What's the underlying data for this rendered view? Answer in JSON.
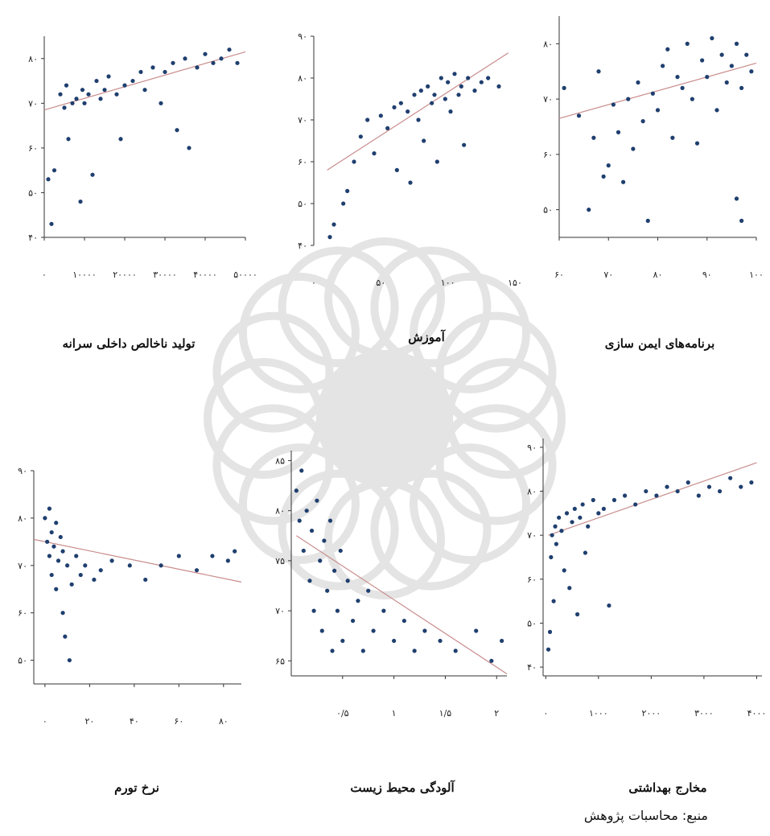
{
  "source_note": "منبع: محاسبات پژوهش",
  "colors": {
    "points": "#1f3f6e",
    "fit_line": "#c98b8b",
    "axis": "#333333",
    "watermark": "#cfcfcf"
  },
  "chart_data": [
    {
      "id": "gdp",
      "type": "scatter",
      "title": "تولید ناخالص داخلی سرانه",
      "xlim": [
        0,
        50000
      ],
      "ylim": [
        40,
        85
      ],
      "x_ticks": [
        0,
        10000,
        20000,
        30000,
        40000,
        50000
      ],
      "x_tick_labels": [
        "۰",
        "۱۰۰۰۰",
        "۲۰۰۰۰",
        "۳۰۰۰۰",
        "۴۰۰۰۰",
        "۵۰۰۰۰"
      ],
      "y_ticks": [
        40,
        50,
        60,
        70,
        80
      ],
      "y_tick_labels": [
        "۴۰",
        "۵۰",
        "۶۰",
        "۷۰",
        "۸۰"
      ],
      "fit": {
        "x": [
          0,
          50000
        ],
        "y": [
          68.5,
          81.5
        ]
      },
      "points": [
        [
          1000,
          53
        ],
        [
          1800,
          43
        ],
        [
          2500,
          55
        ],
        [
          4000,
          72
        ],
        [
          5000,
          69
        ],
        [
          5500,
          74
        ],
        [
          6000,
          62
        ],
        [
          7000,
          70
        ],
        [
          8000,
          71
        ],
        [
          9000,
          48
        ],
        [
          9500,
          73
        ],
        [
          10000,
          70
        ],
        [
          11000,
          72
        ],
        [
          12000,
          54
        ],
        [
          13000,
          75
        ],
        [
          14000,
          71
        ],
        [
          15000,
          73
        ],
        [
          16000,
          76
        ],
        [
          18000,
          72
        ],
        [
          19000,
          62
        ],
        [
          20000,
          74
        ],
        [
          22000,
          75
        ],
        [
          24000,
          77
        ],
        [
          25000,
          73
        ],
        [
          27000,
          78
        ],
        [
          29000,
          70
        ],
        [
          30000,
          77
        ],
        [
          32000,
          79
        ],
        [
          33000,
          64
        ],
        [
          35000,
          80
        ],
        [
          36000,
          60
        ],
        [
          38000,
          78
        ],
        [
          40000,
          81
        ],
        [
          42000,
          79
        ],
        [
          44000,
          80
        ],
        [
          46000,
          82
        ],
        [
          48000,
          79
        ]
      ]
    },
    {
      "id": "education",
      "type": "scatter",
      "title": "آموزش",
      "xlim": [
        0,
        150
      ],
      "ylim": [
        40,
        90
      ],
      "x_ticks": [
        0,
        50,
        100,
        150
      ],
      "x_tick_labels": [
        "۰",
        "۵۰",
        "۱۰۰",
        "۱۵۰"
      ],
      "y_ticks": [
        40,
        50,
        60,
        70,
        80,
        90
      ],
      "y_tick_labels": [
        "۴۰",
        "۵۰",
        "۶۰",
        "۷۰",
        "۸۰",
        "۹۰"
      ],
      "fit": {
        "x": [
          10,
          145
        ],
        "y": [
          58,
          86
        ]
      },
      "points": [
        [
          12,
          42
        ],
        [
          15,
          45
        ],
        [
          22,
          50
        ],
        [
          25,
          53
        ],
        [
          30,
          60
        ],
        [
          35,
          66
        ],
        [
          40,
          70
        ],
        [
          45,
          62
        ],
        [
          50,
          71
        ],
        [
          55,
          68
        ],
        [
          60,
          73
        ],
        [
          62,
          58
        ],
        [
          65,
          74
        ],
        [
          70,
          72
        ],
        [
          72,
          55
        ],
        [
          75,
          76
        ],
        [
          78,
          70
        ],
        [
          80,
          77
        ],
        [
          82,
          65
        ],
        [
          85,
          78
        ],
        [
          88,
          74
        ],
        [
          90,
          76
        ],
        [
          92,
          60
        ],
        [
          95,
          80
        ],
        [
          98,
          75
        ],
        [
          100,
          79
        ],
        [
          102,
          72
        ],
        [
          105,
          81
        ],
        [
          108,
          76
        ],
        [
          110,
          78
        ],
        [
          112,
          64
        ],
        [
          115,
          80
        ],
        [
          120,
          77
        ],
        [
          125,
          79
        ],
        [
          130,
          80
        ],
        [
          138,
          78
        ]
      ]
    },
    {
      "id": "immunization",
      "type": "scatter",
      "title": "برنامه‌های ایمن سازی",
      "xlim": [
        60,
        100
      ],
      "ylim": [
        45,
        85
      ],
      "x_ticks": [
        60,
        70,
        80,
        90,
        100
      ],
      "x_tick_labels": [
        "۶۰",
        "۷۰",
        "۸۰",
        "۹۰",
        "۱۰۰"
      ],
      "y_ticks": [
        50,
        60,
        70,
        80
      ],
      "y_tick_labels": [
        "۵۰",
        "۶۰",
        "۷۰",
        "۸۰"
      ],
      "fit": {
        "x": [
          60,
          100
        ],
        "y": [
          66.5,
          76.5
        ]
      },
      "points": [
        [
          61,
          72
        ],
        [
          64,
          67
        ],
        [
          66,
          50
        ],
        [
          67,
          63
        ],
        [
          68,
          75
        ],
        [
          69,
          56
        ],
        [
          70,
          58
        ],
        [
          71,
          69
        ],
        [
          72,
          64
        ],
        [
          73,
          55
        ],
        [
          74,
          70
        ],
        [
          75,
          61
        ],
        [
          76,
          73
        ],
        [
          77,
          66
        ],
        [
          78,
          48
        ],
        [
          79,
          71
        ],
        [
          80,
          68
        ],
        [
          81,
          76
        ],
        [
          82,
          79
        ],
        [
          83,
          63
        ],
        [
          84,
          74
        ],
        [
          85,
          72
        ],
        [
          86,
          80
        ],
        [
          87,
          70
        ],
        [
          88,
          62
        ],
        [
          89,
          77
        ],
        [
          90,
          74
        ],
        [
          91,
          81
        ],
        [
          92,
          68
        ],
        [
          93,
          78
        ],
        [
          94,
          73
        ],
        [
          95,
          76
        ],
        [
          96,
          80
        ],
        [
          97,
          72
        ],
        [
          98,
          78
        ],
        [
          99,
          75
        ],
        [
          97,
          48
        ],
        [
          96,
          52
        ]
      ]
    },
    {
      "id": "inflation",
      "type": "scatter",
      "title": "نرخ تورم",
      "xlim": [
        -5,
        88
      ],
      "ylim": [
        45,
        90
      ],
      "x_ticks": [
        0,
        20,
        40,
        60,
        80
      ],
      "x_tick_labels": [
        "۰",
        "۲۰",
        "۴۰",
        "۶۰",
        "۸۰"
      ],
      "y_ticks": [
        50,
        60,
        70,
        80,
        90
      ],
      "y_tick_labels": [
        "۵۰",
        "۶۰",
        "۷۰",
        "۸۰",
        "۹۰"
      ],
      "fit": {
        "x": [
          -5,
          88
        ],
        "y": [
          75.5,
          66.5
        ]
      },
      "points": [
        [
          0,
          80
        ],
        [
          1,
          75
        ],
        [
          2,
          72
        ],
        [
          2,
          82
        ],
        [
          3,
          77
        ],
        [
          3,
          68
        ],
        [
          4,
          74
        ],
        [
          5,
          79
        ],
        [
          5,
          65
        ],
        [
          6,
          71
        ],
        [
          7,
          76
        ],
        [
          8,
          60
        ],
        [
          8,
          73
        ],
        [
          9,
          55
        ],
        [
          10,
          70
        ],
        [
          11,
          50
        ],
        [
          12,
          66
        ],
        [
          14,
          72
        ],
        [
          16,
          68
        ],
        [
          18,
          70
        ],
        [
          22,
          67
        ],
        [
          25,
          69
        ],
        [
          30,
          71
        ],
        [
          38,
          70
        ],
        [
          45,
          67
        ],
        [
          52,
          70
        ],
        [
          60,
          72
        ],
        [
          68,
          69
        ],
        [
          75,
          72
        ],
        [
          82,
          71
        ],
        [
          85,
          73
        ]
      ]
    },
    {
      "id": "pollution",
      "type": "scatter",
      "title": "آلودگی محیط زیست",
      "xlim": [
        0,
        2.1
      ],
      "ylim": [
        63.5,
        86
      ],
      "x_ticks": [
        0.5,
        1,
        1.5,
        2
      ],
      "x_tick_labels": [
        "۰/۵",
        "۱",
        "۱/۵",
        "۲"
      ],
      "y_ticks": [
        65,
        70,
        75,
        80,
        85
      ],
      "y_tick_labels": [
        "۶۵",
        "۷۰",
        "۷۵",
        "۸۰",
        "۸۵"
      ],
      "fit": {
        "x": [
          0.05,
          2.1
        ],
        "y": [
          77.5,
          63.7
        ]
      },
      "points": [
        [
          0.05,
          82
        ],
        [
          0.08,
          79
        ],
        [
          0.1,
          84
        ],
        [
          0.12,
          76
        ],
        [
          0.15,
          80
        ],
        [
          0.18,
          73
        ],
        [
          0.2,
          78
        ],
        [
          0.22,
          70
        ],
        [
          0.25,
          81
        ],
        [
          0.28,
          75
        ],
        [
          0.3,
          68
        ],
        [
          0.32,
          77
        ],
        [
          0.35,
          72
        ],
        [
          0.38,
          79
        ],
        [
          0.4,
          66
        ],
        [
          0.42,
          74
        ],
        [
          0.45,
          70
        ],
        [
          0.48,
          76
        ],
        [
          0.5,
          67
        ],
        [
          0.55,
          73
        ],
        [
          0.6,
          69
        ],
        [
          0.65,
          71
        ],
        [
          0.7,
          66
        ],
        [
          0.75,
          72
        ],
        [
          0.8,
          68
        ],
        [
          0.9,
          70
        ],
        [
          1.0,
          67
        ],
        [
          1.1,
          69
        ],
        [
          1.2,
          66
        ],
        [
          1.3,
          68
        ],
        [
          1.45,
          67
        ],
        [
          1.6,
          66
        ],
        [
          1.8,
          68
        ],
        [
          1.95,
          65
        ],
        [
          2.05,
          67
        ]
      ]
    },
    {
      "id": "health",
      "type": "scatter",
      "title": "مخارج بهداشتی",
      "xlim": [
        -50,
        4100
      ],
      "ylim": [
        38,
        92
      ],
      "x_ticks": [
        0,
        1000,
        2000,
        3000,
        4000
      ],
      "x_tick_labels": [
        "۰",
        "۱۰۰۰",
        "۲۰۰۰",
        "۳۰۰۰",
        "۴۰۰۰"
      ],
      "y_ticks": [
        40,
        50,
        60,
        70,
        80,
        90
      ],
      "y_tick_labels": [
        "۴۰",
        "۵۰",
        "۶۰",
        "۷۰",
        "۸۰",
        "۹۰"
      ],
      "fit": {
        "x": [
          50,
          4000
        ],
        "y": [
          70,
          86.5
        ]
      },
      "points": [
        [
          50,
          44
        ],
        [
          80,
          48
        ],
        [
          100,
          65
        ],
        [
          120,
          70
        ],
        [
          150,
          55
        ],
        [
          180,
          72
        ],
        [
          200,
          68
        ],
        [
          250,
          74
        ],
        [
          300,
          71
        ],
        [
          350,
          62
        ],
        [
          400,
          75
        ],
        [
          450,
          58
        ],
        [
          500,
          73
        ],
        [
          550,
          76
        ],
        [
          600,
          52
        ],
        [
          650,
          74
        ],
        [
          700,
          77
        ],
        [
          750,
          66
        ],
        [
          800,
          72
        ],
        [
          900,
          78
        ],
        [
          1000,
          75
        ],
        [
          1100,
          76
        ],
        [
          1200,
          54
        ],
        [
          1300,
          78
        ],
        [
          1500,
          79
        ],
        [
          1700,
          77
        ],
        [
          1900,
          80
        ],
        [
          2100,
          79
        ],
        [
          2300,
          81
        ],
        [
          2500,
          80
        ],
        [
          2700,
          82
        ],
        [
          2900,
          79
        ],
        [
          3100,
          81
        ],
        [
          3300,
          80
        ],
        [
          3500,
          83
        ],
        [
          3700,
          81
        ],
        [
          3900,
          82
        ]
      ]
    }
  ]
}
